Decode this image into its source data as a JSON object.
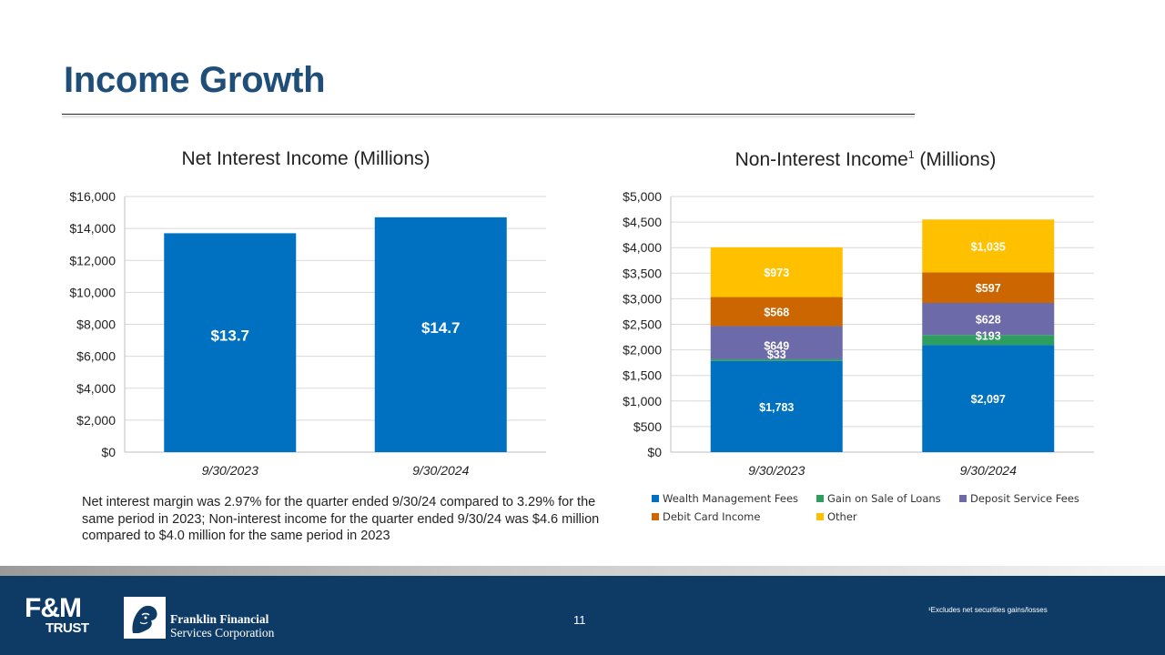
{
  "slide": {
    "title": "Income Growth",
    "page_number": "11",
    "note": "Net interest margin was 2.97% for the quarter ended 9/30/24 compared to 3.29% for the same period in 2023; Non-interest income for the quarter ended 9/30/24 was $4.6 million compared to $4.0 million for the same period in 2023",
    "footnote": "¹Excludes net securities gains/losses"
  },
  "footer": {
    "fm_logo_top": "F&M",
    "fm_logo_bottom": "TRUST",
    "company_line1": "Franklin Financial",
    "company_line2": "Services Corporation"
  },
  "chart_data": [
    {
      "type": "bar",
      "title": "Net Interest Income (Millions)",
      "categories": [
        "9/30/2023",
        "9/30/2024"
      ],
      "values": [
        13700,
        14700
      ],
      "data_labels": [
        "$13.7",
        "$14.7"
      ],
      "ylim": [
        0,
        16000
      ],
      "yticks": [
        0,
        2000,
        4000,
        6000,
        8000,
        10000,
        12000,
        14000,
        16000
      ],
      "ytick_labels": [
        "$0",
        "$2,000",
        "$4,000",
        "$6,000",
        "$8,000",
        "$10,000",
        "$12,000",
        "$14,000",
        "$16,000"
      ],
      "grid": true,
      "color": "#0070c0"
    },
    {
      "type": "stacked-bar",
      "title": "Non-Interest Income",
      "title_superscript": "1",
      "title_suffix": " (Millions)",
      "categories": [
        "9/30/2023",
        "9/30/2024"
      ],
      "series": [
        {
          "name": "Wealth Management Fees",
          "values": [
            1783,
            2097
          ],
          "labels": [
            "$1,783",
            "$2,097"
          ],
          "color": "#0070c0"
        },
        {
          "name": "Gain on Sale of Loans",
          "values": [
            33,
            193
          ],
          "labels": [
            "$33",
            "$193"
          ],
          "color": "#2e9e5e"
        },
        {
          "name": "Deposit Service Fees",
          "values": [
            649,
            628
          ],
          "labels": [
            "$649",
            "$628"
          ],
          "color": "#6c6aa8"
        },
        {
          "name": "Debit Card Income",
          "values": [
            568,
            597
          ],
          "labels": [
            "$568",
            "$597"
          ],
          "color": "#cc6600"
        },
        {
          "name": "Other",
          "values": [
            973,
            1035
          ],
          "labels": [
            "$973",
            "$1,035"
          ],
          "color": "#ffc000"
        }
      ],
      "ylim": [
        0,
        5000
      ],
      "yticks": [
        0,
        500,
        1000,
        1500,
        2000,
        2500,
        3000,
        3500,
        4000,
        4500,
        5000
      ],
      "ytick_labels": [
        "$0",
        "$500",
        "$1,000",
        "$1,500",
        "$2,000",
        "$2,500",
        "$3,000",
        "$3,500",
        "$4,000",
        "$4,500",
        "$5,000"
      ],
      "grid": true,
      "legend_position": "bottom"
    }
  ]
}
